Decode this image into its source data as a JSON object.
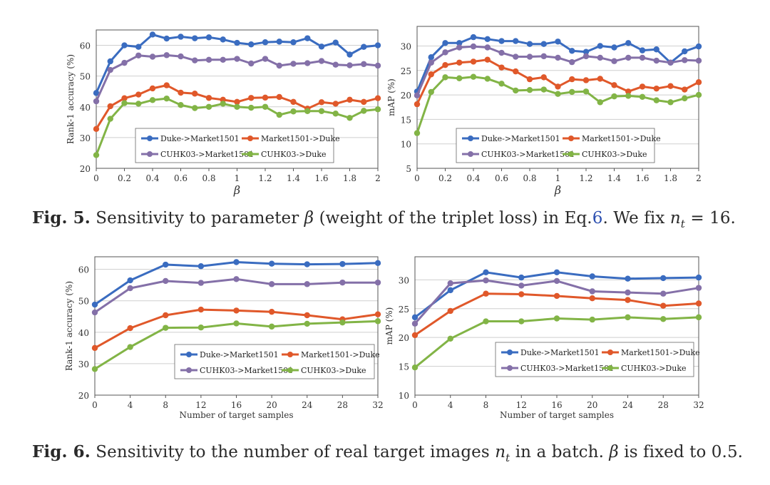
{
  "figures": {
    "fig5": {
      "label": "Fig. 5.",
      "pre": "Sensitivity to parameter",
      "beta": "β",
      "mid": "(weight of the triplet loss) in Eq.",
      "ref": "6",
      "post": ". We fix",
      "n": "n",
      "sub": "t",
      "eq": "= 16."
    },
    "fig6": {
      "label": "Fig. 6.",
      "pre": "Sensitivity to the number of real target images",
      "n": "n",
      "sub": "t",
      "mid": "in a batch.",
      "beta": "β",
      "post": "is fixed to 0.5."
    }
  },
  "colors": {
    "blue": "#3a6cc0",
    "orange": "#e0582a",
    "purple": "#8470a8",
    "green": "#82b446",
    "frame": "#555555",
    "grid": "#cfcfcf"
  },
  "chart_data": [
    {
      "type": "line",
      "id": "c1",
      "xlabel": "β",
      "ylabel": "Rank-1 accuracy (%)",
      "x": [
        0,
        0.1,
        0.2,
        0.3,
        0.4,
        0.5,
        0.6,
        0.7,
        0.8,
        0.9,
        1.0,
        1.1,
        1.2,
        1.3,
        1.4,
        1.5,
        1.6,
        1.7,
        1.8,
        1.9,
        2.0
      ],
      "xticks": [
        0,
        0.2,
        0.4,
        0.6,
        0.8,
        1,
        1.2,
        1.4,
        1.6,
        1.8,
        2
      ],
      "xticklabels": [
        "0",
        "0.2",
        "0.4",
        "0.6",
        "0.8",
        "1",
        "1.2",
        "1.4",
        "1.6",
        "1.8",
        "2"
      ],
      "xlim": [
        0,
        2
      ],
      "ylim": [
        20,
        65
      ],
      "yticks": [
        20,
        30,
        40,
        50,
        60
      ],
      "legend_pos": "lower-center",
      "series": [
        {
          "name": "Duke->Market1501",
          "color": "#3a6cc0",
          "values": [
            44.5,
            54.8,
            60.0,
            59.5,
            63.5,
            62.2,
            62.8,
            62.3,
            62.6,
            61.9,
            60.8,
            60.3,
            61.0,
            61.2,
            61.0,
            62.3,
            59.6,
            60.9,
            57.0,
            59.5,
            60.0
          ]
        },
        {
          "name": "Market1501->Duke",
          "color": "#e0582a",
          "values": [
            32.8,
            40.2,
            42.8,
            44.0,
            46.0,
            47.0,
            44.6,
            44.3,
            42.9,
            42.3,
            41.6,
            42.9,
            43.0,
            43.2,
            41.6,
            39.4,
            41.5,
            41.0,
            42.3,
            41.6,
            42.8
          ]
        },
        {
          "name": "CUHK03->Market1501",
          "color": "#8470a8",
          "values": [
            41.8,
            52.0,
            54.3,
            56.7,
            56.3,
            56.8,
            56.4,
            55.1,
            55.3,
            55.3,
            55.6,
            54.1,
            55.6,
            53.4,
            54.0,
            54.2,
            54.9,
            53.7,
            53.5,
            53.9,
            53.4
          ]
        },
        {
          "name": "CUHK03->Duke",
          "color": "#82b446",
          "values": [
            24.3,
            36.1,
            41.2,
            41.0,
            42.2,
            42.7,
            40.6,
            39.6,
            40.0,
            41.0,
            40.0,
            39.7,
            40.0,
            37.4,
            38.5,
            38.6,
            38.6,
            37.8,
            36.4,
            38.7,
            39.2
          ]
        }
      ]
    },
    {
      "type": "line",
      "id": "c2",
      "xlabel": "β",
      "ylabel": "mAP (%)",
      "x": [
        0,
        0.1,
        0.2,
        0.3,
        0.4,
        0.5,
        0.6,
        0.7,
        0.8,
        0.9,
        1.0,
        1.1,
        1.2,
        1.3,
        1.4,
        1.5,
        1.6,
        1.7,
        1.8,
        1.9,
        2.0
      ],
      "xticks": [
        0,
        0.2,
        0.4,
        0.6,
        0.8,
        1,
        1.2,
        1.4,
        1.6,
        1.8,
        2
      ],
      "xticklabels": [
        "0",
        "0.2",
        "0.4",
        "0.6",
        "0.8",
        "1",
        "1.2",
        "1.4",
        "1.6",
        "1.8",
        "2"
      ],
      "xlim": [
        0,
        2
      ],
      "ylim": [
        5,
        34
      ],
      "yticks": [
        5,
        10,
        15,
        20,
        25,
        30
      ],
      "legend_pos": "lower-center",
      "series": [
        {
          "name": "Duke->Market1501",
          "color": "#3a6cc0",
          "values": [
            20.7,
            27.7,
            30.6,
            30.6,
            31.8,
            31.4,
            31.0,
            31.0,
            30.4,
            30.4,
            30.9,
            29.0,
            28.8,
            30.0,
            29.7,
            30.6,
            29.1,
            29.3,
            26.6,
            28.9,
            29.9
          ]
        },
        {
          "name": "Market1501->Duke",
          "color": "#e0582a",
          "values": [
            18.1,
            24.2,
            26.1,
            26.6,
            26.8,
            27.2,
            25.6,
            24.8,
            23.2,
            23.6,
            21.7,
            23.2,
            23.0,
            23.3,
            22.0,
            20.7,
            21.7,
            21.3,
            21.8,
            21.1,
            22.6
          ]
        },
        {
          "name": "CUHK03->Market1501",
          "color": "#8470a8",
          "values": [
            19.9,
            26.6,
            28.7,
            29.7,
            29.9,
            29.7,
            28.6,
            27.8,
            27.8,
            27.9,
            27.6,
            26.7,
            27.9,
            27.6,
            26.9,
            27.6,
            27.6,
            27.0,
            26.6,
            27.1,
            27.0
          ]
        },
        {
          "name": "CUHK03->Duke",
          "color": "#82b446",
          "values": [
            12.2,
            20.6,
            23.6,
            23.4,
            23.7,
            23.3,
            22.3,
            20.9,
            21.0,
            21.1,
            20.2,
            20.6,
            20.7,
            18.5,
            19.7,
            19.8,
            19.6,
            18.9,
            18.5,
            19.3,
            20.0
          ]
        }
      ]
    },
    {
      "type": "line",
      "id": "c3",
      "xlabel": "Number of target samples",
      "ylabel": "Rank-1 accuracy (%)",
      "x": [
        0,
        4,
        8,
        12,
        16,
        20,
        24,
        28,
        32
      ],
      "xticks": [
        0,
        4,
        8,
        12,
        16,
        20,
        24,
        28,
        32
      ],
      "xticklabels": [
        "0",
        "4",
        "8",
        "12",
        "16",
        "20",
        "24",
        "28",
        "32"
      ],
      "xlim": [
        0,
        32
      ],
      "ylim": [
        20,
        64
      ],
      "yticks": [
        20,
        30,
        40,
        50,
        60
      ],
      "legend_pos": "lower-right",
      "series": [
        {
          "name": "Duke->Market1501",
          "color": "#3a6cc0",
          "values": [
            48.8,
            56.5,
            61.5,
            61.0,
            62.3,
            61.8,
            61.6,
            61.7,
            62.0
          ]
        },
        {
          "name": "Market1501->Duke",
          "color": "#e0582a",
          "values": [
            35.0,
            41.3,
            45.4,
            47.2,
            46.9,
            46.5,
            45.4,
            44.1,
            45.7
          ]
        },
        {
          "name": "CUHK03->Market1501",
          "color": "#8470a8",
          "values": [
            46.3,
            54.0,
            56.3,
            55.7,
            56.9,
            55.3,
            55.3,
            55.8,
            55.8
          ]
        },
        {
          "name": "CUHK03->Duke",
          "color": "#82b446",
          "values": [
            28.3,
            35.3,
            41.4,
            41.5,
            42.8,
            41.8,
            42.7,
            43.1,
            43.5
          ]
        }
      ]
    },
    {
      "type": "line",
      "id": "c4",
      "xlabel": "Number of target samples",
      "ylabel": "mAP (%)",
      "x": [
        0,
        4,
        8,
        12,
        16,
        20,
        24,
        28,
        32
      ],
      "xticks": [
        0,
        4,
        8,
        12,
        16,
        20,
        24,
        28,
        32
      ],
      "xticklabels": [
        "0",
        "4",
        "8",
        "12",
        "16",
        "20",
        "24",
        "28",
        "32"
      ],
      "xlim": [
        0,
        32
      ],
      "ylim": [
        10,
        34
      ],
      "yticks": [
        10,
        15,
        20,
        25,
        30
      ],
      "legend_pos": "lower-right",
      "series": [
        {
          "name": "Duke->Market1501",
          "color": "#3a6cc0",
          "values": [
            23.5,
            28.2,
            31.3,
            30.4,
            31.3,
            30.6,
            30.2,
            30.3,
            30.4
          ]
        },
        {
          "name": "Market1501->Duke",
          "color": "#e0582a",
          "values": [
            20.4,
            24.6,
            27.6,
            27.5,
            27.2,
            26.8,
            26.5,
            25.5,
            25.9
          ]
        },
        {
          "name": "CUHK03->Market1501",
          "color": "#8470a8",
          "values": [
            22.4,
            29.4,
            29.9,
            29.0,
            29.8,
            28.0,
            27.8,
            27.6,
            28.6
          ]
        },
        {
          "name": "CUHK03->Duke",
          "color": "#82b446",
          "values": [
            14.8,
            19.8,
            22.8,
            22.8,
            23.3,
            23.1,
            23.5,
            23.2,
            23.5
          ]
        }
      ]
    }
  ]
}
